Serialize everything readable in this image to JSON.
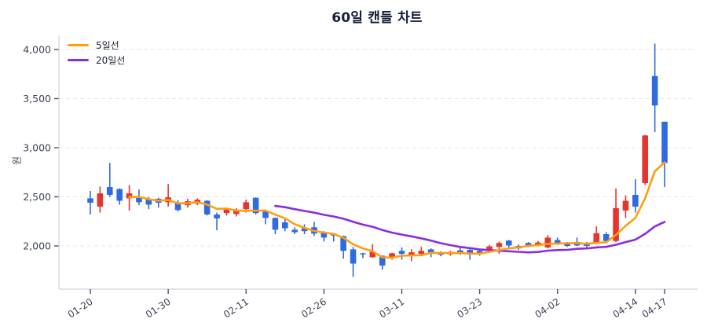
{
  "title": "60일 캔들 차트",
  "legend": {
    "items": [
      {
        "label": "5일선",
        "color": "#ff9e0e"
      },
      {
        "label": "20일선",
        "color": "#8a2be2"
      }
    ]
  },
  "y_axis": {
    "label": "원",
    "tick_labels": [
      "4,000",
      "3,500",
      "3,000",
      "2,500",
      "2,000"
    ],
    "tick_values": [
      4000,
      3500,
      3000,
      2500,
      2000
    ]
  },
  "x_axis": {
    "ticks": [
      {
        "index": 0,
        "label": "01-20"
      },
      {
        "index": 8,
        "label": "01-30"
      },
      {
        "index": 16,
        "label": "02-11"
      },
      {
        "index": 24,
        "label": "02-26"
      },
      {
        "index": 32,
        "label": "03-11"
      },
      {
        "index": 40,
        "label": "03-23"
      },
      {
        "index": 48,
        "label": "04-02"
      },
      {
        "index": 56,
        "label": "04-14"
      },
      {
        "index": 59,
        "label": "04-17"
      }
    ]
  },
  "chart_data": {
    "type": "candlestick",
    "title": "60일 캔들 차트",
    "unit": "원",
    "up_color": "#e5352f",
    "down_color": "#2f6be0",
    "ma5_color": "#ff9e0e",
    "ma20_color": "#8a2be2",
    "ma5_window": 5,
    "ma20_window": 20,
    "ohlc_order": [
      "open",
      "high",
      "low",
      "close"
    ],
    "candles_ohlc": [
      [
        2485,
        2560,
        2320,
        2440
      ],
      [
        2400,
        2605,
        2340,
        2535
      ],
      [
        2600,
        2845,
        2500,
        2520
      ],
      [
        2580,
        2585,
        2420,
        2460
      ],
      [
        2485,
        2620,
        2360,
        2535
      ],
      [
        2495,
        2575,
        2415,
        2445
      ],
      [
        2480,
        2500,
        2375,
        2420
      ],
      [
        2480,
        2490,
        2390,
        2440
      ],
      [
        2445,
        2630,
        2400,
        2495
      ],
      [
        2445,
        2465,
        2350,
        2365
      ],
      [
        2415,
        2480,
        2390,
        2455
      ],
      [
        2430,
        2485,
        2415,
        2470
      ],
      [
        2460,
        2465,
        2310,
        2320
      ],
      [
        2320,
        2340,
        2160,
        2280
      ],
      [
        2335,
        2390,
        2310,
        2375
      ],
      [
        2325,
        2385,
        2300,
        2365
      ],
      [
        2375,
        2470,
        2340,
        2445
      ],
      [
        2490,
        2495,
        2320,
        2335
      ],
      [
        2350,
        2355,
        2220,
        2285
      ],
      [
        2285,
        2290,
        2120,
        2165
      ],
      [
        2240,
        2270,
        2150,
        2180
      ],
      [
        2165,
        2190,
        2120,
        2140
      ],
      [
        2180,
        2220,
        2120,
        2150
      ],
      [
        2190,
        2245,
        2100,
        2125
      ],
      [
        2140,
        2150,
        2045,
        2085
      ],
      [
        2125,
        2130,
        2045,
        2105
      ],
      [
        2100,
        2105,
        1870,
        1950
      ],
      [
        1965,
        1990,
        1685,
        1820
      ],
      [
        1925,
        1930,
        1875,
        1915
      ],
      [
        1885,
        2020,
        1880,
        1940
      ],
      [
        1900,
        1905,
        1757,
        1800
      ],
      [
        1885,
        1930,
        1860,
        1925
      ],
      [
        1950,
        1985,
        1860,
        1920
      ],
      [
        1900,
        1965,
        1845,
        1935
      ],
      [
        1920,
        1990,
        1910,
        1950
      ],
      [
        1965,
        1975,
        1885,
        1920
      ],
      [
        1925,
        1945,
        1895,
        1910
      ],
      [
        1915,
        1950,
        1900,
        1935
      ],
      [
        1955,
        1990,
        1910,
        1920
      ],
      [
        1960,
        1975,
        1860,
        1925
      ],
      [
        1950,
        1960,
        1900,
        1920
      ],
      [
        1960,
        2010,
        1940,
        1995
      ],
      [
        1990,
        2045,
        1920,
        2030
      ],
      [
        2055,
        2060,
        1985,
        2005
      ],
      [
        2000,
        2015,
        1960,
        1975
      ],
      [
        2030,
        2040,
        1990,
        2000
      ],
      [
        2005,
        2050,
        1995,
        2035
      ],
      [
        1985,
        2110,
        1975,
        2085
      ],
      [
        2060,
        2085,
        2010,
        2020
      ],
      [
        2030,
        2040,
        1990,
        2000
      ],
      [
        2040,
        2085,
        2000,
        2005
      ],
      [
        2030,
        2040,
        1965,
        2000
      ],
      [
        2040,
        2200,
        2020,
        2130
      ],
      [
        2120,
        2140,
        2040,
        2050
      ],
      [
        2050,
        2585,
        2040,
        2385
      ],
      [
        2360,
        2515,
        2285,
        2460
      ],
      [
        2520,
        2680,
        2340,
        2400
      ],
      [
        2640,
        3130,
        2620,
        3125
      ],
      [
        3730,
        4060,
        3160,
        3430
      ],
      [
        3265,
        3265,
        2600,
        2845
      ]
    ]
  }
}
